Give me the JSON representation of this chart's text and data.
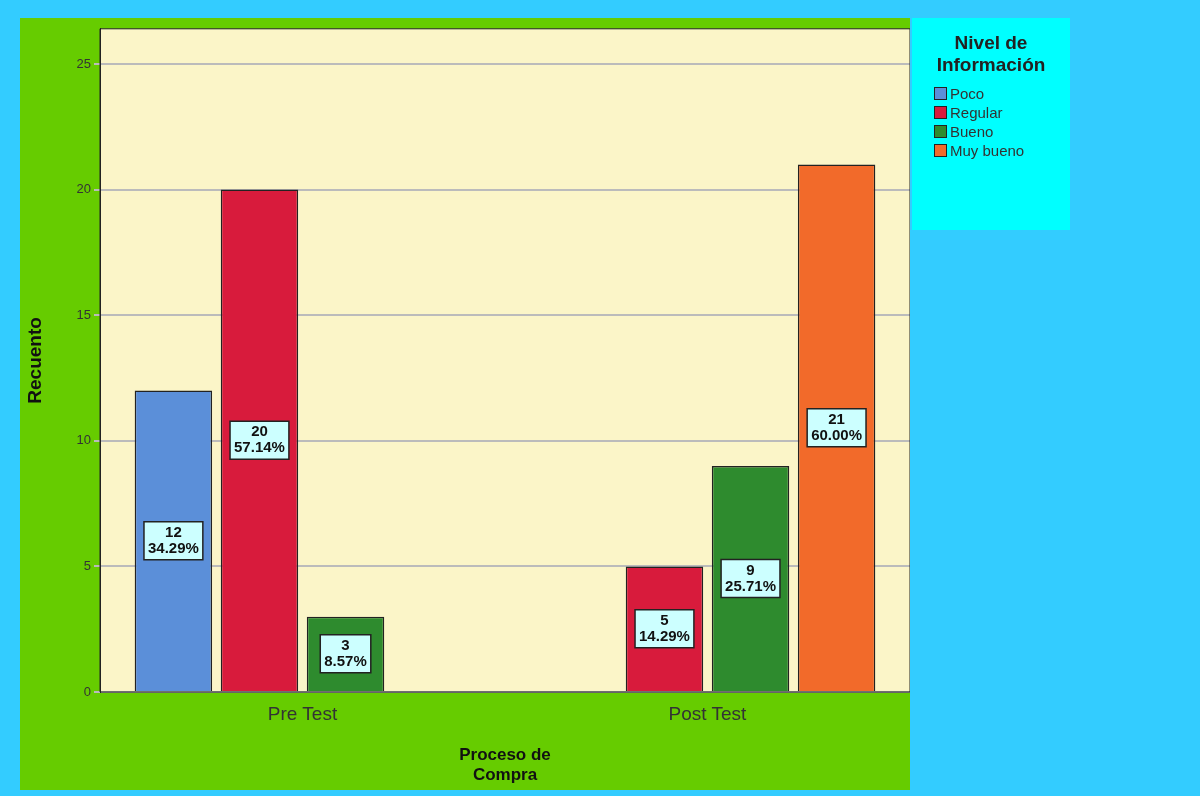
{
  "chart_data": {
    "type": "bar",
    "xlabel": "Proceso de Compra",
    "ylabel": "Recuento",
    "legend_title": "Nivel de Información",
    "categories": [
      "Pre Test",
      "Post Test"
    ],
    "series": [
      {
        "name": "Poco",
        "color": "#5b8fd9",
        "values": [
          12,
          null
        ],
        "value_labels": [
          "12\n34.29%",
          null
        ]
      },
      {
        "name": "Regular",
        "color": "#d81b3c",
        "values": [
          20,
          5
        ],
        "value_labels": [
          "20\n57.14%",
          "5\n14.29%"
        ]
      },
      {
        "name": "Bueno",
        "color": "#2e8b2e",
        "values": [
          3,
          9
        ],
        "value_labels": [
          "3\n8.57%",
          "9\n25.71%"
        ]
      },
      {
        "name": "Muy bueno",
        "color": "#f26a2a",
        "values": [
          null,
          21
        ],
        "value_labels": [
          null,
          "21\n60.00%"
        ]
      }
    ],
    "ylim": [
      0,
      26.4
    ],
    "yticks": [
      0,
      5,
      10,
      15,
      20,
      25
    ],
    "grid": "y",
    "legend": "top right"
  }
}
